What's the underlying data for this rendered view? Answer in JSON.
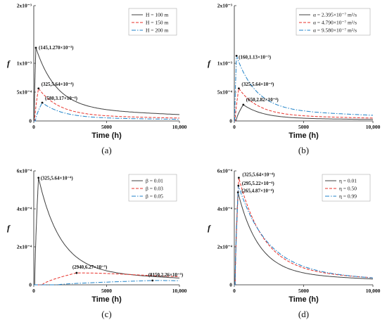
{
  "chart_data": [
    {
      "panel": "(a)",
      "type": "line",
      "xlabel": "Time (h)",
      "ylabel": "f",
      "xlim": [
        0,
        10000
      ],
      "ylim": [
        0,
        0.002
      ],
      "x_ticks": [
        "0",
        "5000",
        "10,000"
      ],
      "y_ticks": [
        "0",
        "5x10⁻⁴",
        "1x10⁻³",
        "2x10⁻³"
      ],
      "legend": "top-right",
      "series": [
        {
          "name": "H = 100 m",
          "color": "#404040",
          "dash": "",
          "tpeak": 145,
          "peak": 0.00127
        },
        {
          "name": "H = 150 m",
          "color": "#e8312a",
          "dash": "4 2",
          "tpeak": 325,
          "peak": 0.000564
        },
        {
          "name": "H = 200 m",
          "color": "#1f82c8",
          "dash": "6 2 1.5 2",
          "tpeak": 580,
          "peak": 0.000317
        }
      ],
      "annotations": [
        {
          "text": "(145,1.270×10⁻³)",
          "x": 145,
          "y": 0.00127
        },
        {
          "text": "(325,5.64×10⁻⁴)",
          "x": 325,
          "y": 0.000564
        },
        {
          "text": "(580,3.17×10⁻⁴)",
          "x": 580,
          "y": 0.000317
        }
      ]
    },
    {
      "panel": "(b)",
      "type": "line",
      "xlabel": "Time (h)",
      "ylabel": "f",
      "xlim": [
        0,
        10000
      ],
      "ylim": [
        0,
        0.002
      ],
      "x_ticks": [
        "0",
        "5000",
        "10,000"
      ],
      "y_ticks": [
        "0",
        "5x10⁻⁴",
        "1x10⁻³",
        "2x10⁻³"
      ],
      "legend": "top-right",
      "series": [
        {
          "name": "α = 2.395×10⁻⁷ m²/s",
          "color": "#404040",
          "dash": "",
          "tpeak": 650,
          "peak": 0.000282
        },
        {
          "name": "α = 4.790×10⁻⁷ m²/s",
          "color": "#e8312a",
          "dash": "4 2",
          "tpeak": 325,
          "peak": 0.000564
        },
        {
          "name": "α = 9.580×10⁻⁷ m²/s",
          "color": "#1f82c8",
          "dash": "6 2 1.5 2",
          "tpeak": 160,
          "peak": 0.00113
        }
      ],
      "annotations": [
        {
          "text": "(160,1.13×10⁻³)",
          "x": 160,
          "y": 0.00113
        },
        {
          "text": "(325,5.64×10⁻⁴)",
          "x": 325,
          "y": 0.000564
        },
        {
          "text": "(650,2.82×10⁻⁴)",
          "x": 650,
          "y": 0.000282
        }
      ]
    },
    {
      "panel": "(c)",
      "type": "line",
      "xlabel": "Time (h)",
      "ylabel": "f",
      "xlim": [
        0,
        10000
      ],
      "ylim": [
        0,
        0.0006
      ],
      "x_ticks": [
        "0",
        "5000",
        "10,000"
      ],
      "y_ticks": [
        "0",
        "2x10⁻⁴",
        "4x10⁻⁴",
        "6x10⁻⁴"
      ],
      "legend": "top-right",
      "series": [
        {
          "name": "β = 0.01",
          "color": "#404040",
          "dash": "",
          "tpeak": 325,
          "peak": 0.000564
        },
        {
          "name": "β = 0.03",
          "color": "#e8312a",
          "dash": "4 2",
          "tpeak": 2940,
          "peak": 6.27e-05
        },
        {
          "name": "β = 0.05",
          "color": "#1f82c8",
          "dash": "6 2 1.5 2",
          "tpeak": 8150,
          "peak": 2.26e-05
        }
      ],
      "annotations": [
        {
          "text": "(325,5.64×10⁻⁴)",
          "x": 325,
          "y": 0.000564
        },
        {
          "text": "(2940,6.27×10⁻⁵)",
          "x": 2940,
          "y": 6.27e-05
        },
        {
          "text": "(8150,2.26×10⁻⁵)",
          "x": 8150,
          "y": 2.26e-05
        }
      ]
    },
    {
      "panel": "(d)",
      "type": "line",
      "xlabel": "Time (h)",
      "ylabel": "f",
      "xlim": [
        0,
        10000
      ],
      "ylim": [
        0,
        0.0006
      ],
      "x_ticks": [
        "0",
        "5000",
        "10,000"
      ],
      "y_ticks": [
        "0",
        "2x10⁻⁴",
        "4x10⁻⁴",
        "6x10⁻⁴"
      ],
      "legend": "top-right",
      "series": [
        {
          "name": "η = 0.01",
          "color": "#404040",
          "dash": "",
          "tpeak": 265,
          "peak": 0.000487
        },
        {
          "name": "η = 0.50",
          "color": "#e8312a",
          "dash": "4 2",
          "tpeak": 325,
          "peak": 0.000564
        },
        {
          "name": "η = 0.99",
          "color": "#1f82c8",
          "dash": "6 2 1.5 2",
          "tpeak": 295,
          "peak": 0.000522
        }
      ],
      "annotations": [
        {
          "text": "(325,5.64×10⁻⁴)",
          "x": 325,
          "y": 0.000564
        },
        {
          "text": "(295,5.22×10⁻⁴)",
          "x": 295,
          "y": 0.000522
        },
        {
          "text": "(265,4.87×10⁻⁴)",
          "x": 265,
          "y": 0.000487
        }
      ]
    }
  ]
}
